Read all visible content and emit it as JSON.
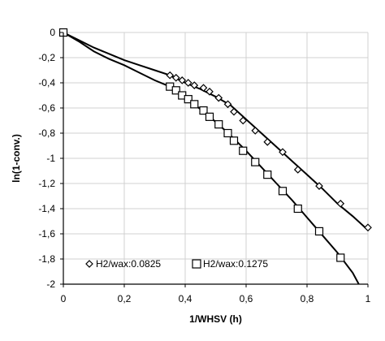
{
  "chart_data": {
    "type": "scatter",
    "xlabel": "1/WHSV (h)",
    "ylabel": "ln(1-conv.)",
    "xlim": [
      0,
      1
    ],
    "ylim": [
      -2,
      0
    ],
    "xticks": [
      0,
      0.2,
      0.4,
      0.6,
      0.8,
      1
    ],
    "yticks": [
      0,
      -0.2,
      -0.4,
      -0.6,
      -0.8,
      -1,
      -1.2,
      -1.4,
      -1.6,
      -1.8,
      -2
    ],
    "xtick_labels": [
      "0",
      "0,2",
      "0,4",
      "0,6",
      "0,8",
      "1"
    ],
    "ytick_labels": [
      "0",
      "-0,2",
      "-0,4",
      "-0,6",
      "-0,8",
      "-1",
      "-1,2",
      "-1,4",
      "-1,6",
      "-1,8",
      "-2"
    ],
    "grid": true,
    "legend_position": "bottom-left",
    "series": [
      {
        "name": "H2/wax:0.0825",
        "marker": "diamond",
        "points": [
          [
            0,
            0
          ],
          [
            0.35,
            -0.34
          ],
          [
            0.37,
            -0.36
          ],
          [
            0.39,
            -0.38
          ],
          [
            0.41,
            -0.4
          ],
          [
            0.43,
            -0.42
          ],
          [
            0.46,
            -0.44
          ],
          [
            0.48,
            -0.47
          ],
          [
            0.51,
            -0.52
          ],
          [
            0.54,
            -0.57
          ],
          [
            0.56,
            -0.63
          ],
          [
            0.59,
            -0.7
          ],
          [
            0.63,
            -0.78
          ],
          [
            0.67,
            -0.87
          ],
          [
            0.72,
            -0.95
          ],
          [
            0.77,
            -1.09
          ],
          [
            0.84,
            -1.22
          ],
          [
            0.91,
            -1.36
          ],
          [
            1.0,
            -1.55
          ]
        ],
        "fit_curve": [
          [
            0,
            0
          ],
          [
            0.05,
            -0.06
          ],
          [
            0.1,
            -0.12
          ],
          [
            0.15,
            -0.17
          ],
          [
            0.2,
            -0.22
          ],
          [
            0.25,
            -0.26
          ],
          [
            0.3,
            -0.3
          ],
          [
            0.35,
            -0.34
          ],
          [
            0.4,
            -0.4
          ],
          [
            0.45,
            -0.45
          ],
          [
            0.5,
            -0.51
          ],
          [
            0.55,
            -0.58
          ],
          [
            0.6,
            -0.69
          ],
          [
            0.65,
            -0.8
          ],
          [
            0.7,
            -0.91
          ],
          [
            0.75,
            -1.02
          ],
          [
            0.8,
            -1.13
          ],
          [
            0.85,
            -1.24
          ],
          [
            0.9,
            -1.36
          ],
          [
            0.95,
            -1.46
          ],
          [
            1.0,
            -1.57
          ]
        ]
      },
      {
        "name": "H2/wax:0.1275",
        "marker": "square",
        "points": [
          [
            0,
            0
          ],
          [
            0.35,
            -0.43
          ],
          [
            0.37,
            -0.46
          ],
          [
            0.39,
            -0.5
          ],
          [
            0.41,
            -0.53
          ],
          [
            0.43,
            -0.57
          ],
          [
            0.46,
            -0.62
          ],
          [
            0.48,
            -0.67
          ],
          [
            0.51,
            -0.73
          ],
          [
            0.54,
            -0.8
          ],
          [
            0.56,
            -0.86
          ],
          [
            0.59,
            -0.94
          ],
          [
            0.63,
            -1.03
          ],
          [
            0.67,
            -1.13
          ],
          [
            0.72,
            -1.26
          ],
          [
            0.77,
            -1.4
          ],
          [
            0.84,
            -1.58
          ],
          [
            0.91,
            -1.79
          ]
        ],
        "fit_curve": [
          [
            0,
            0
          ],
          [
            0.05,
            -0.07
          ],
          [
            0.1,
            -0.15
          ],
          [
            0.15,
            -0.21
          ],
          [
            0.2,
            -0.26
          ],
          [
            0.25,
            -0.32
          ],
          [
            0.3,
            -0.38
          ],
          [
            0.35,
            -0.43
          ],
          [
            0.4,
            -0.51
          ],
          [
            0.45,
            -0.61
          ],
          [
            0.5,
            -0.71
          ],
          [
            0.55,
            -0.82
          ],
          [
            0.6,
            -0.94
          ],
          [
            0.65,
            -1.07
          ],
          [
            0.7,
            -1.2
          ],
          [
            0.75,
            -1.33
          ],
          [
            0.8,
            -1.47
          ],
          [
            0.85,
            -1.61
          ],
          [
            0.9,
            -1.75
          ],
          [
            0.95,
            -1.91
          ],
          [
            0.97,
            -2.0
          ]
        ]
      }
    ]
  }
}
